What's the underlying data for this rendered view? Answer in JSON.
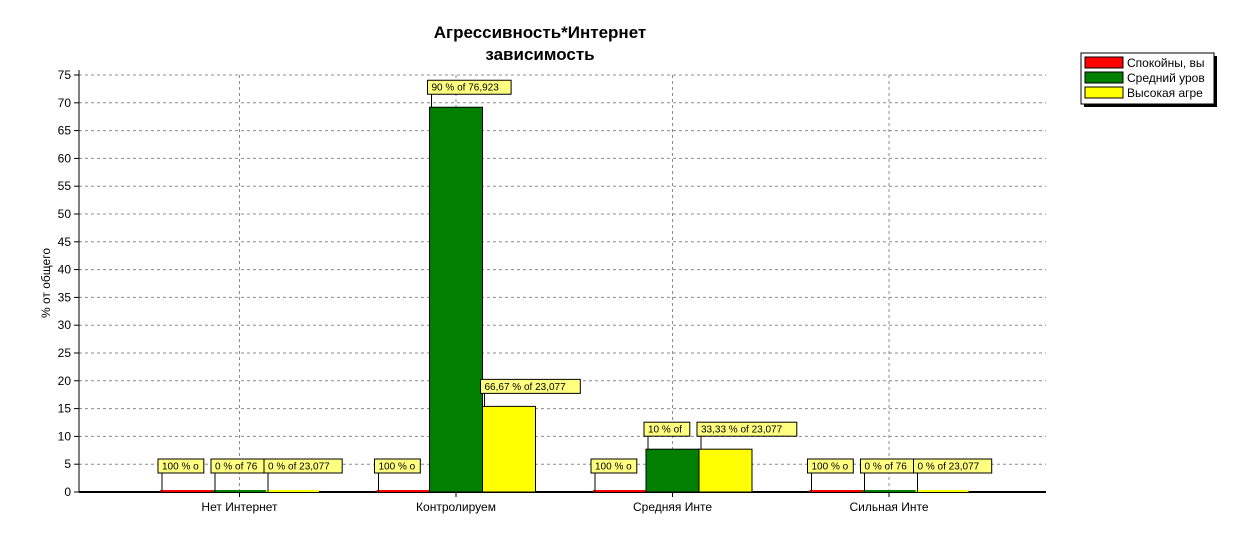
{
  "chart_data": {
    "type": "bar",
    "title": [
      "Агрессивность*Интернет",
      "зависимость"
    ],
    "ylabel": "% от общего",
    "ylim": [
      0,
      75
    ],
    "yticks": [
      0,
      5,
      10,
      15,
      20,
      25,
      30,
      35,
      40,
      45,
      50,
      55,
      60,
      65,
      70,
      75
    ],
    "grid": true,
    "legend_position": "top-right",
    "categories": [
      "Нет Интернет",
      "Контролируем",
      "Средняя Инте",
      "Сильная Инте"
    ],
    "series": [
      {
        "name": "Спокойны, вы",
        "color": "#ff0000",
        "values": [
          0,
          0,
          0,
          0
        ],
        "labels": [
          "100 % o",
          "100 % o",
          "100 % o",
          "100 % o"
        ]
      },
      {
        "name": "Средний уров",
        "color": "#007f00",
        "values": [
          0,
          69.2,
          7.7,
          0
        ],
        "labels": [
          "0 % of 76",
          "90 % of 76,923",
          "10 % of",
          "0 % of 76"
        ]
      },
      {
        "name": "Высокая агре",
        "color": "#ffff00",
        "values": [
          0,
          15.4,
          7.7,
          0
        ],
        "labels": [
          "0 % of 23,077",
          "66,67 % of 23,077",
          "33,33 % of 23,077",
          "0 % of 23,077"
        ]
      }
    ]
  }
}
